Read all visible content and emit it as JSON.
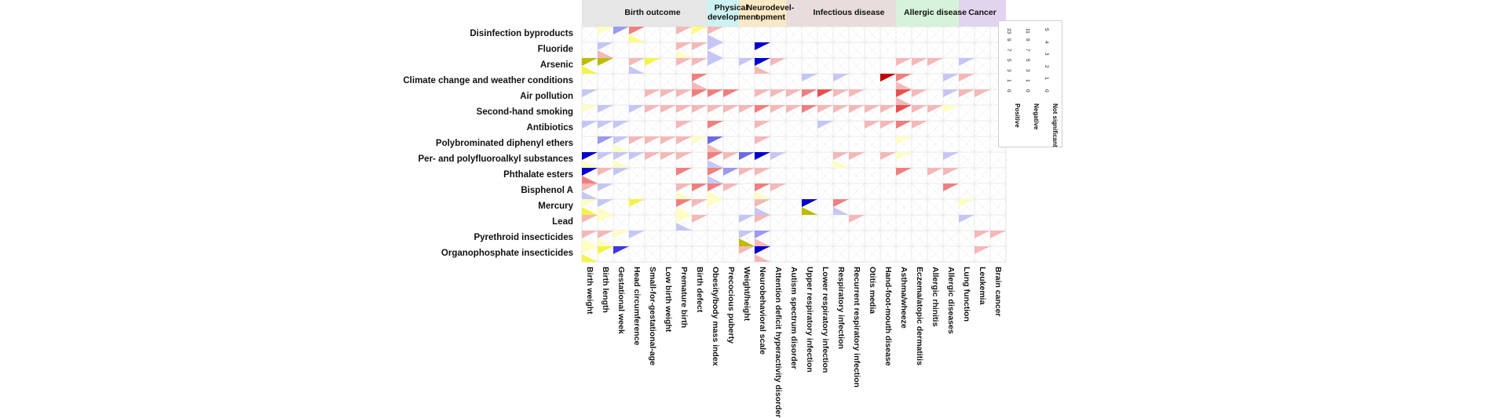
{
  "chart_data": {
    "type": "heatmap",
    "groups": [
      {
        "name": "Birth outcome",
        "span": [
          0,
          8
        ],
        "color": "#e6e6e6"
      },
      {
        "name": "Physical\ndevelopment",
        "span": [
          8,
          10
        ],
        "color": "#cdf2f2"
      },
      {
        "name": "Neurodevel-\nopment",
        "span": [
          10,
          13
        ],
        "color": "#fbe8c4"
      },
      {
        "name": "Infectious disease",
        "span": [
          13,
          20
        ],
        "color": "#e9dcdc"
      },
      {
        "name": "Allergic disease",
        "span": [
          20,
          24
        ],
        "color": "#d6f3d9"
      },
      {
        "name": "Cancer",
        "span": [
          24,
          26
        ],
        "color": "#e2d3ef"
      }
    ],
    "columns": [
      "Birth weight",
      "Birth length",
      "Gestational week",
      "Head circumference",
      "Small-for-gestational-age",
      "Low birth weight",
      "Premature birth",
      "Birth defect",
      "Obesity/body mass index",
      "Precocious puberty",
      "Weight/height",
      "Neurobehavioral scale",
      "Attention deficit hyperactivity disorder",
      "Autism spectrum disorder",
      "Upper respiratory infection",
      "Lower respiratory infection",
      "Respiratory infection",
      "Recurrent respiratory infection",
      "Otitis media",
      "Hand-foot-mouth disease",
      "Asthma/wheeze",
      "Eczema/atopic dermatitis",
      "Allergic rhinitis",
      "Allergic diseases",
      "Lung function",
      "Leukemia",
      "Brain cancer"
    ],
    "rows": [
      "Disinfection byproducts",
      "Fluoride",
      "Arsenic",
      "Climate change and weather conditions",
      "Air pollution",
      "Second-hand smoking",
      "Antibiotics",
      "Polybrominated diphenyl ethers",
      "Per- and polyfluoroalkyl substances",
      "Phthalate esters",
      "Bisphenol A",
      "Mercury",
      "Lead",
      "Pyrethroid insecticides",
      "Organophosphate insecticides"
    ],
    "cells": [
      [
        "0",
        "N1",
        "-3",
        "+3|N2",
        "0",
        "0",
        "+1",
        "N2",
        "+1|-1",
        "0",
        "0",
        "0",
        "0",
        "0",
        "0",
        "0",
        "0",
        "0",
        "0",
        "0",
        "0",
        "0",
        "0",
        "0",
        "0",
        "0",
        "0"
      ],
      [
        "0",
        "-1|+1",
        "0",
        "0",
        "0",
        "0",
        "+1|N1",
        "+1",
        "-1|-1",
        "0",
        "0",
        "-9",
        "0",
        "0",
        "0",
        "0",
        "0",
        "0",
        "0",
        "0",
        "0",
        "0",
        "0",
        "0",
        "0",
        "0",
        "0"
      ],
      [
        "N5|N3",
        "N5",
        "0",
        "+1|-1",
        "N3",
        "0",
        "+1",
        "+1",
        "-1",
        "0",
        "-1",
        "-9|+1",
        "+1",
        "0",
        "0",
        "0",
        "0",
        "0",
        "0",
        "0",
        "+1",
        "+1",
        "+1",
        "0",
        "-1",
        "0",
        "0"
      ],
      [
        "0",
        "0",
        "0",
        "0",
        "0",
        "0",
        "0",
        "+3|+1",
        "0",
        "0",
        "0",
        "0",
        "0",
        "0",
        "-1",
        "0",
        "-1",
        "0",
        "0",
        "+9",
        "+3|+1",
        "0",
        "0",
        "-1",
        "+1",
        "0",
        "0"
      ],
      [
        "-1",
        "0",
        "0",
        "0",
        "+1",
        "+1",
        "+1",
        "+3",
        "+3",
        "+3",
        "0",
        "+1",
        "+1",
        "+1",
        "+3",
        "+5",
        "+1",
        "+1",
        "0",
        "0",
        "+5|+1",
        "+1",
        "0",
        "-1",
        "+1",
        "+1",
        "0"
      ],
      [
        "N1",
        "-1",
        "0",
        "-1",
        "+1",
        "+1",
        "+1",
        "+1",
        "+1",
        "+1",
        "+1",
        "+3",
        "+1",
        "+1",
        "+3",
        "+1",
        "+1",
        "+1",
        "+1",
        "+1",
        "+5",
        "+1",
        "+1",
        "N1",
        "0",
        "0",
        "0"
      ],
      [
        "-1",
        "-1",
        "-1",
        "0",
        "0",
        "0",
        "+1",
        "0",
        "+3",
        "0",
        "0",
        "+1",
        "0",
        "0",
        "0",
        "-1",
        "0",
        "0",
        "+1",
        "+1",
        "+3",
        "+1",
        "0",
        "0",
        "0",
        "0",
        "0"
      ],
      [
        "0",
        "-3",
        "-1|N1",
        "+1",
        "+1",
        "+1",
        "+1",
        "N1",
        "-5|+1",
        "0",
        "0",
        "+1",
        "0",
        "0",
        "0",
        "0",
        "0",
        "0",
        "0",
        "0",
        "N1",
        "0",
        "0",
        "0",
        "0",
        "0",
        "0"
      ],
      [
        "-9|N1",
        "-1",
        "-1|N1",
        "-1",
        "+1",
        "+1",
        "+1",
        "0",
        "+3|-1",
        "+1",
        "-5",
        "-9",
        "-1",
        "0",
        "0",
        "0",
        "+1|N1",
        "+1",
        "0",
        "+1",
        "N1",
        "0",
        "0",
        "-1",
        "0",
        "0",
        "0"
      ],
      [
        "-9|+3",
        "+1",
        "-1",
        "0",
        "0",
        "0",
        "+3",
        "0",
        "+3|-1",
        "-3",
        "+1",
        "+1",
        "0",
        "0",
        "0",
        "0",
        "0",
        "0",
        "0",
        "0",
        "+3",
        "0",
        "+1",
        "+1",
        "0",
        "0",
        "0"
      ],
      [
        "+1|-1",
        "-1",
        "0",
        "0",
        "0",
        "0",
        "+1|N1",
        "+3",
        "+3|N1",
        "+1",
        "0",
        "+3|N1",
        "+1",
        "0",
        "0",
        "0",
        "0",
        "0",
        "0",
        "0",
        "0",
        "0",
        "0",
        "+3",
        "0",
        "0",
        "0"
      ],
      [
        "N1|N3",
        "-1|N1",
        "0",
        "N3",
        "0",
        "0",
        "+3|N1",
        "+1",
        "N1",
        "0",
        "0",
        "+1|-1",
        "0",
        "0",
        "-9|N5",
        "0",
        "+3|-1",
        "0",
        "0",
        "0",
        "0",
        "0",
        "0",
        "0",
        "N1",
        "0",
        "0"
      ],
      [
        "+1",
        "N1",
        "0",
        "0",
        "0",
        "0",
        "N1|-1",
        "+1",
        "0",
        "0",
        "-1",
        "+1",
        "0",
        "0",
        "0",
        "0",
        "0",
        "+1",
        "0",
        "0",
        "0",
        "0",
        "0",
        "0",
        "-1",
        "0",
        "0"
      ],
      [
        "+1|N1",
        "+1|N1",
        "N1",
        "-1",
        "0",
        "0",
        "0",
        "0",
        "0",
        "0",
        "-1|N5",
        "-3|+1",
        "0",
        "0",
        "0",
        "0",
        "0",
        "0",
        "0",
        "0",
        "0",
        "0",
        "0",
        "0",
        "0",
        "+1",
        "+1"
      ],
      [
        "N1|N3",
        "N3",
        "-7",
        "0",
        "0",
        "0",
        "0",
        "0",
        "0",
        "0",
        "+1",
        "-9|+1",
        "0",
        "0",
        "0",
        "0",
        "0",
        "0",
        "0",
        "0",
        "0",
        "0",
        "0",
        "0",
        "0",
        "+1",
        "0"
      ]
    ],
    "legend": {
      "positive": {
        "label": "Positive",
        "ticks": [
          "0",
          "1",
          "3",
          "5",
          "7",
          "9",
          "23"
        ]
      },
      "negative": {
        "label": "Negative",
        "ticks": [
          "0",
          "1",
          "3",
          "5",
          "7",
          "9",
          "11"
        ]
      },
      "not_significant": {
        "label": "Not significant",
        "ticks": [
          "0",
          "1",
          "2",
          "3",
          "4",
          "5"
        ]
      }
    },
    "colors": {
      "positive": [
        "#f4b8b8",
        "#ef7f7f",
        "#e85050",
        "#d91a1a",
        "#c00000"
      ],
      "negative": [
        "#c6c6f6",
        "#9a9aee",
        "#6b6be6",
        "#3a3ade",
        "#0000cc"
      ],
      "not_significant": [
        "#fdfdc4",
        "#fbfb88",
        "#f3f34a",
        "#e6e616",
        "#bbbb00"
      ],
      "grid": "#e3e3e3"
    }
  }
}
